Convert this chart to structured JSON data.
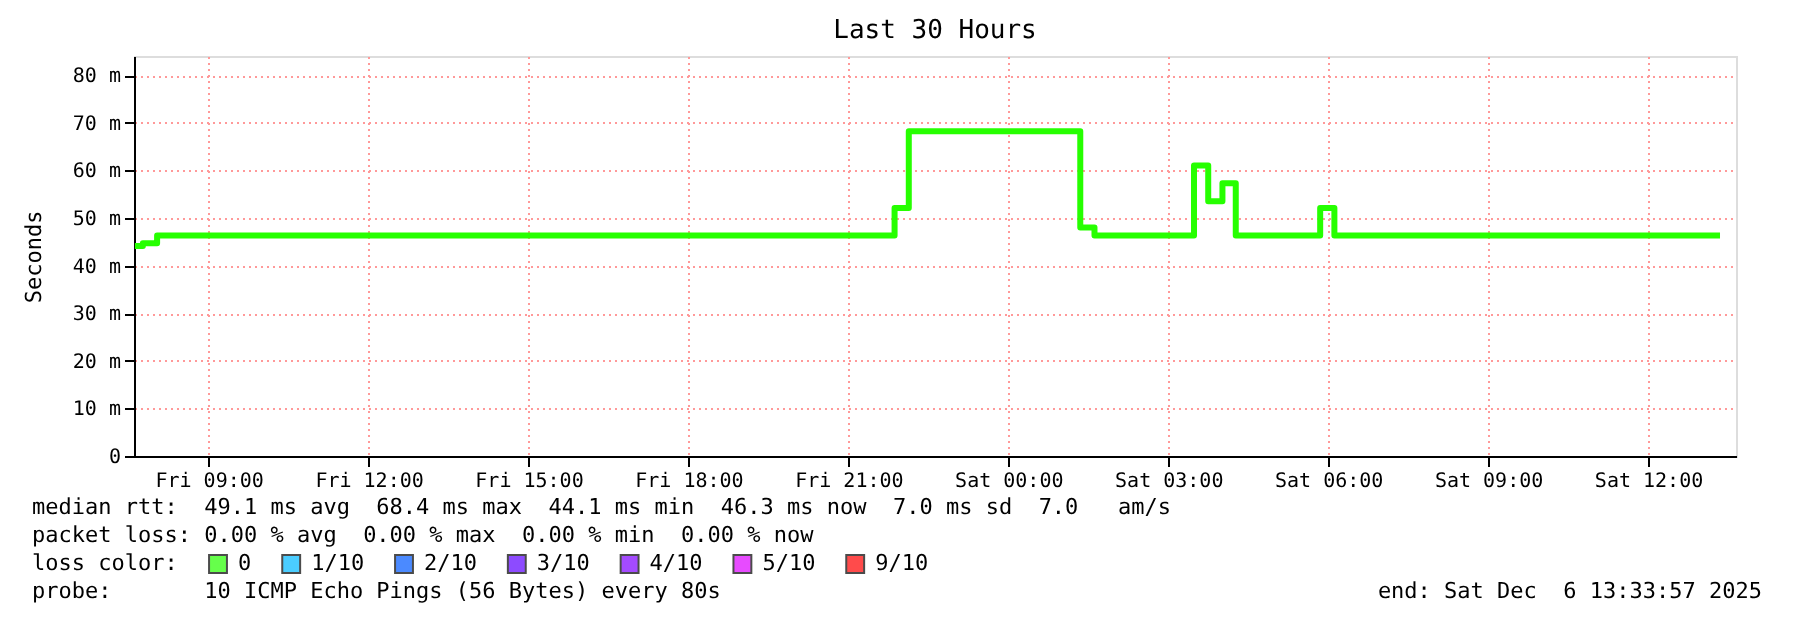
{
  "chart_data": {
    "type": "step",
    "title": "Last 30 Hours",
    "ylabel": "Seconds",
    "legend_title": "loss color:",
    "legend": "bottom",
    "grid": true,
    "x": [
      "2025-12-05T07:37",
      "2025-12-05T07:46",
      "2025-12-05T08:02",
      "2025-12-05T21:52",
      "2025-12-05T22:08",
      "2025-12-06T01:21",
      "2025-12-06T01:37",
      "2025-12-06T03:29",
      "2025-12-06T03:45",
      "2025-12-06T04:01",
      "2025-12-06T04:16",
      "2025-12-06T05:51",
      "2025-12-06T06:07",
      "2025-12-06T13:21"
    ],
    "xlim": [
      "2025-12-05T07:36",
      "2025-12-06T13:39"
    ],
    "xticks": [
      {
        "value": "2025-12-05T09:00",
        "label": "Fri 09:00"
      },
      {
        "value": "2025-12-05T12:00",
        "label": "Fri 12:00"
      },
      {
        "value": "2025-12-05T15:00",
        "label": "Fri 15:00"
      },
      {
        "value": "2025-12-05T18:00",
        "label": "Fri 18:00"
      },
      {
        "value": "2025-12-05T21:00",
        "label": "Fri 21:00"
      },
      {
        "value": "2025-12-06T00:00",
        "label": "Sat 00:00"
      },
      {
        "value": "2025-12-06T03:00",
        "label": "Sat 03:00"
      },
      {
        "value": "2025-12-06T06:00",
        "label": "Sat 06:00"
      },
      {
        "value": "2025-12-06T09:00",
        "label": "Sat 09:00"
      },
      {
        "value": "2025-12-06T12:00",
        "label": "Sat 12:00"
      }
    ],
    "ylim": [
      0,
      84
    ],
    "yticks": [
      0,
      {
        "value": 10,
        "label": "10 m"
      },
      {
        "value": 20,
        "label": "20 m"
      },
      {
        "value": 30,
        "label": "30 m"
      },
      {
        "value": 40,
        "label": "40 m"
      },
      {
        "value": 50,
        "label": "50 m"
      },
      {
        "value": 60,
        "label": "60 m"
      },
      {
        "value": 70,
        "label": "70 m"
      },
      {
        "value": 80,
        "label": "80 m"
      }
    ],
    "series": [
      {
        "name": "0",
        "color": "#26ff00",
        "values": [
          44.1,
          44.7,
          46.3,
          52.1,
          68.2,
          48,
          46.3,
          61,
          53.5,
          57.3,
          46.3,
          52.1,
          46.3,
          46.3
        ]
      },
      {
        "name": "1/10",
        "color": "#00b8ff",
        "values": [
          null,
          null,
          null,
          null,
          null,
          null,
          null,
          null,
          null,
          null,
          null,
          null,
          null,
          null
        ]
      },
      {
        "name": "2/10",
        "color": "#0059ff",
        "values": [
          null,
          null,
          null,
          null,
          null,
          null,
          null,
          null,
          null,
          null,
          null,
          null,
          null,
          null
        ]
      },
      {
        "name": "3/10",
        "color": "#5e00ff",
        "values": [
          null,
          null,
          null,
          null,
          null,
          null,
          null,
          null,
          null,
          null,
          null,
          null,
          null,
          null
        ]
      },
      {
        "name": "4/10",
        "color": "#7e00ff",
        "values": [
          null,
          null,
          null,
          null,
          null,
          null,
          null,
          null,
          null,
          null,
          null,
          null,
          null,
          null
        ]
      },
      {
        "name": "5/10",
        "color": "#dd00ff",
        "values": [
          null,
          null,
          null,
          null,
          null,
          null,
          null,
          null,
          null,
          null,
          null,
          null,
          null,
          null
        ]
      },
      {
        "name": "9/10",
        "color": "#ff0000",
        "values": [
          null,
          null,
          null,
          null,
          null,
          null,
          null,
          null,
          null,
          null,
          null,
          null,
          null,
          null
        ]
      }
    ],
    "annotations": [
      "median rtt:  49.1 ms avg  68.4 ms max  44.1 ms min  46.3 ms now  7.0 ms sd  7.0   am/s",
      "packet loss: 0.00 % avg  0.00 % max  0.00 % min  0.00 % now",
      "probe:       10 ICMP Echo Pings (56 Bytes) every 80s",
      "end: Sat Dec  6 13:33:57 2025"
    ]
  }
}
